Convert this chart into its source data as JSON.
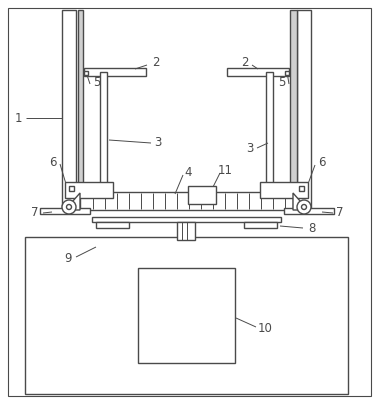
{
  "bg_color": "#ffffff",
  "line_color": "#4a4a4a",
  "lw": 1.0,
  "fs": 8.5
}
